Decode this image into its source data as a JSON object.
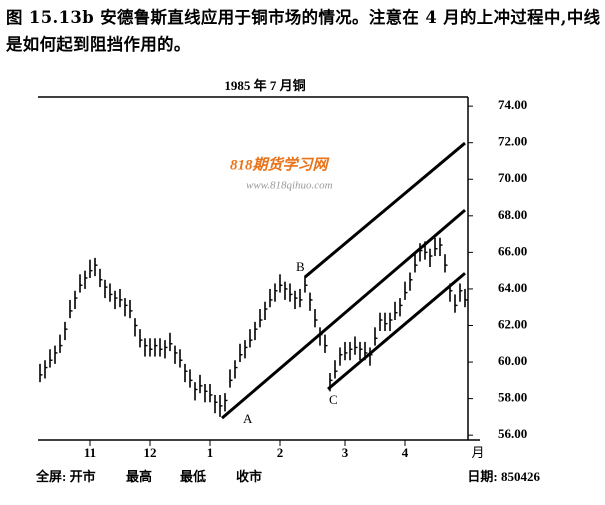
{
  "chart_data": {
    "type": "ohlc",
    "caption": "图 15.13b 安德鲁斯直线应用于铜市场的情况。注意在 4 月的上冲过程中,中线是如何起到阻挡作用的。",
    "title": "1985 年 7 月铜",
    "x_unit": "月",
    "footer": {
      "left": [
        "全屏: 开市",
        "最高",
        "最低",
        "收市"
      ],
      "right": "日期: 850426"
    },
    "watermark": [
      "818期货学习网",
      "www.818qihuo.com"
    ],
    "annotations": [
      "A",
      "B",
      "C"
    ],
    "color": "#000000",
    "categories": [
      null,
      null,
      null,
      null,
      null,
      null,
      null,
      null,
      null,
      null,
      "11",
      null,
      null,
      null,
      null,
      null,
      null,
      null,
      null,
      null,
      null,
      null,
      "12",
      null,
      null,
      null,
      null,
      null,
      null,
      null,
      null,
      null,
      null,
      null,
      "1",
      null,
      null,
      null,
      null,
      null,
      null,
      null,
      null,
      null,
      null,
      null,
      null,
      null,
      "2",
      null,
      null,
      null,
      null,
      null,
      null,
      null,
      null,
      null,
      null,
      null,
      null,
      "3",
      null,
      null,
      null,
      null,
      null,
      null,
      null,
      null,
      null,
      null,
      null,
      "4",
      null,
      null,
      null,
      null,
      null,
      null,
      null,
      null,
      null,
      null,
      null,
      null
    ],
    "highs": [
      59.9,
      60.1,
      60.7,
      60.9,
      61.5,
      62.2,
      63.4,
      63.9,
      64.8,
      65.0,
      65.6,
      65.7,
      65.1,
      64.5,
      64.3,
      63.9,
      64.0,
      63.5,
      63.4,
      62.4,
      61.8,
      61.3,
      61.3,
      61.3,
      61.3,
      61.2,
      61.6,
      60.9,
      60.7,
      59.9,
      59.6,
      58.9,
      59.3,
      58.8,
      58.8,
      58.2,
      58.2,
      58.3,
      59.6,
      60.1,
      61.0,
      61.2,
      61.8,
      62.2,
      62.9,
      63.3,
      64.0,
      64.3,
      64.8,
      64.4,
      64.3,
      63.9,
      64.0,
      64.7,
      63.8,
      62.9,
      61.9,
      61.5,
      59.4,
      60.1,
      60.8,
      61.1,
      61.1,
      61.4,
      61.1,
      61.1,
      60.8,
      61.9,
      62.7,
      62.7,
      62.7,
      63.3,
      63.5,
      64.4,
      64.9,
      65.9,
      66.5,
      66.6,
      66.2,
      66.8,
      66.8,
      65.9,
      64.3,
      63.7,
      64.3,
      64.0
    ],
    "lows": [
      58.9,
      59.1,
      59.7,
      59.9,
      60.5,
      61.2,
      62.4,
      62.9,
      63.8,
      64.0,
      64.6,
      64.7,
      64.1,
      63.5,
      63.3,
      62.9,
      63.0,
      62.5,
      62.4,
      61.4,
      60.8,
      60.3,
      60.3,
      60.3,
      60.3,
      60.2,
      60.6,
      59.9,
      59.7,
      58.9,
      58.6,
      57.9,
      58.3,
      57.8,
      57.8,
      57.2,
      57.0,
      57.3,
      58.6,
      59.1,
      60.0,
      60.2,
      60.8,
      61.2,
      61.9,
      62.3,
      63.0,
      63.3,
      63.8,
      63.4,
      63.3,
      62.9,
      63.0,
      63.8,
      62.8,
      61.9,
      60.9,
      60.5,
      58.4,
      59.1,
      59.8,
      60.1,
      60.1,
      60.4,
      60.1,
      60.1,
      59.8,
      60.9,
      61.7,
      61.7,
      61.7,
      62.3,
      62.5,
      63.4,
      63.9,
      64.9,
      65.5,
      65.6,
      65.2,
      65.8,
      65.8,
      64.9,
      63.3,
      62.7,
      63.3,
      63.0
    ],
    "closes": [
      59.3,
      59.7,
      60.1,
      60.5,
      60.9,
      61.8,
      62.8,
      63.5,
      64.2,
      64.6,
      65.0,
      65.3,
      64.5,
      64.1,
      63.7,
      63.5,
      63.4,
      63.1,
      62.8,
      62.0,
      61.2,
      60.9,
      60.7,
      60.9,
      60.7,
      60.8,
      61.0,
      60.5,
      60.1,
      59.5,
      59.0,
      58.5,
      58.7,
      58.4,
      58.2,
      57.8,
      57.6,
      57.9,
      59.0,
      59.7,
      60.4,
      60.8,
      61.2,
      61.8,
      62.3,
      62.9,
      63.4,
      63.9,
      64.2,
      64.0,
      63.7,
      63.5,
      63.4,
      64.2,
      63.4,
      62.3,
      61.5,
      60.9,
      59.0,
      59.5,
      60.4,
      60.5,
      60.7,
      60.8,
      60.7,
      60.5,
      60.4,
      61.3,
      62.3,
      62.1,
      62.3,
      62.7,
      63.1,
      63.8,
      64.5,
      65.3,
      66.1,
      66.0,
      65.8,
      66.2,
      66.4,
      65.3,
      63.9,
      63.1,
      63.9,
      63.4
    ],
    "lines": [
      {
        "x": [
          36.4,
          85
        ],
        "y": [
          56.93,
          68.31
        ]
      },
      {
        "x": [
          53,
          85
        ],
        "y": [
          64.65,
          71.98
        ]
      },
      {
        "x": [
          57.6,
          85
        ],
        "y": [
          58.52,
          64.86
        ]
      }
    ],
    "ylim": [
      55.9,
      74.5
    ],
    "yticks": [
      {
        "value": 56,
        "label": "56.00"
      },
      {
        "value": 58,
        "label": "58.00"
      },
      {
        "value": 60,
        "label": "60.00"
      },
      {
        "value": 62,
        "label": "62.00"
      },
      {
        "value": 64,
        "label": "64.00"
      },
      {
        "value": 66,
        "label": "66.00"
      },
      {
        "value": 68,
        "label": "68.00"
      },
      {
        "value": 70,
        "label": "70.00"
      },
      {
        "value": 72,
        "label": "72.00"
      },
      {
        "value": 74,
        "label": "74.00"
      }
    ],
    "axis_side": "right"
  }
}
